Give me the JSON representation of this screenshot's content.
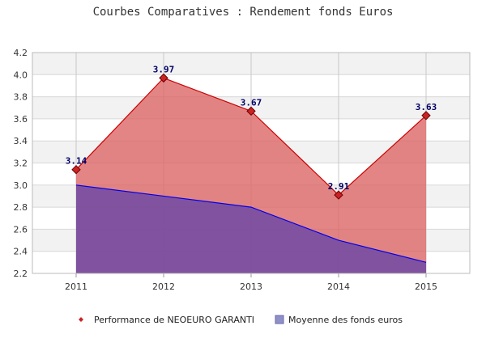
{
  "chart_data": {
    "type": "area",
    "title": "Courbes Comparatives : Rendement fonds Euros",
    "xlabel": "",
    "ylabel": "",
    "categories": [
      "2011",
      "2012",
      "2013",
      "2014",
      "2015"
    ],
    "ylim": [
      2.2,
      4.2
    ],
    "yticks": [
      "2.2",
      "2.4",
      "2.6",
      "2.8",
      "3.0",
      "3.2",
      "3.4",
      "3.6",
      "3.8",
      "4.0",
      "4.2"
    ],
    "grid": true,
    "legend_position": "bottom",
    "series": [
      {
        "name": "Performance de NEOEURO GARANTI",
        "values": [
          3.14,
          3.97,
          3.67,
          2.91,
          3.63
        ],
        "labels": [
          "3.14",
          "3.97",
          "3.67",
          "2.91",
          "3.63"
        ],
        "line_color": "#cc0000",
        "fill_color": "#dd6666",
        "marker_color": "#cc2222"
      },
      {
        "name": "Moyenne des fonds euros",
        "values": [
          3.0,
          2.9,
          2.8,
          2.5,
          2.3
        ],
        "line_color": "#0000ee",
        "fill_color": "#7a4fa0"
      }
    ]
  }
}
